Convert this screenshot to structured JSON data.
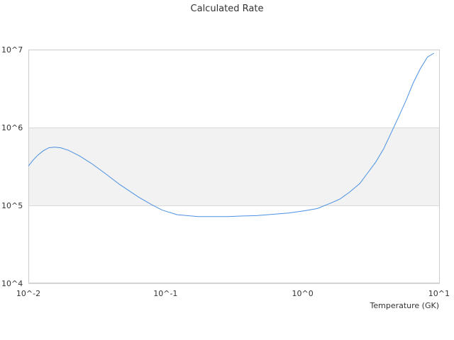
{
  "chart_data": {
    "type": "line",
    "title": "Calculated Rate",
    "xlabel": "Temperature (GK)",
    "ylabel": "",
    "x_scale": "log",
    "y_scale": "log",
    "xlim": [
      0.01,
      10
    ],
    "ylim": [
      10000,
      10000000
    ],
    "x_tick_values": [
      0.01,
      0.1,
      1,
      10
    ],
    "x_tick_labels": [
      "10^-2",
      "10^-1",
      "10^0",
      "10^1"
    ],
    "y_tick_values": [
      10000,
      100000,
      1000000,
      10000000
    ],
    "y_tick_labels": [
      "10^4",
      "10^5",
      "10^6",
      "10^7"
    ],
    "grid": true,
    "band_fill": "#f2f2f2",
    "band_range": [
      100000,
      1000000
    ],
    "line_color": "#4a90e2",
    "series": [
      {
        "x": [
          0.01,
          0.0108,
          0.0117,
          0.0128,
          0.0141,
          0.0155,
          0.0172,
          0.0196,
          0.0237,
          0.0292,
          0.036,
          0.0464,
          0.0635,
          0.0794,
          0.0948,
          0.1215,
          0.1727,
          0.2227,
          0.2854,
          0.352,
          0.4617,
          0.6064,
          0.7896,
          1.0146,
          1.2746,
          1.5988,
          1.8722,
          2.1783,
          2.609,
          2.9835,
          3.4101,
          3.8887,
          4.4287,
          5.037,
          5.6856,
          6.383,
          7.2006,
          8.1066,
          9.074
        ],
        "y": [
          320000,
          380000,
          440000,
          500000,
          550000,
          560000,
          550000,
          510000,
          430000,
          340000,
          260000,
          185000,
          128000,
          102000,
          87000,
          76000,
          72000,
          72000,
          72000,
          73000,
          74000,
          77000,
          80000,
          85000,
          91000,
          107000,
          121000,
          146000,
          191000,
          262000,
          360000,
          530000,
          860000,
          1400000,
          2250000,
          3700000,
          5650000,
          8000000,
          9000000
        ]
      }
    ]
  }
}
